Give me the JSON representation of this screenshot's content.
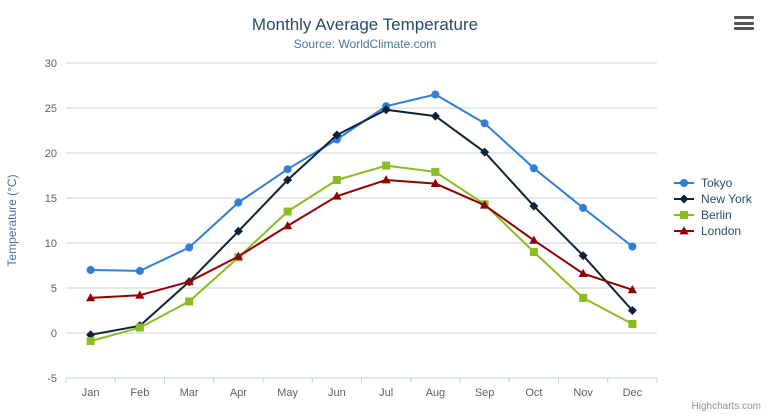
{
  "chart_data": {
    "type": "line",
    "title": "Monthly Average Temperature",
    "subtitle": "Source: WorldClimate.com",
    "categories": [
      "Jan",
      "Feb",
      "Mar",
      "Apr",
      "May",
      "Jun",
      "Jul",
      "Aug",
      "Sep",
      "Oct",
      "Nov",
      "Dec"
    ],
    "series": [
      {
        "name": "Tokyo",
        "color": "#2f7ed8",
        "marker": "circle",
        "values": [
          7.0,
          6.9,
          9.5,
          14.5,
          18.2,
          21.5,
          25.2,
          26.5,
          23.3,
          18.3,
          13.9,
          9.6
        ]
      },
      {
        "name": "New York",
        "color": "#0d233a",
        "marker": "diamond",
        "values": [
          -0.2,
          0.8,
          5.7,
          11.3,
          17.0,
          22.0,
          24.8,
          24.1,
          20.1,
          14.1,
          8.6,
          2.5
        ]
      },
      {
        "name": "Berlin",
        "color": "#8bbc21",
        "marker": "square",
        "values": [
          -0.9,
          0.6,
          3.5,
          8.4,
          13.5,
          17.0,
          18.6,
          17.9,
          14.3,
          9.0,
          3.9,
          1.0
        ]
      },
      {
        "name": "London",
        "color": "#910000",
        "marker": "triangle",
        "values": [
          3.9,
          4.2,
          5.7,
          8.5,
          11.9,
          15.2,
          17.0,
          16.6,
          14.2,
          10.3,
          6.6,
          4.8
        ]
      }
    ],
    "xlabel": "",
    "ylabel": "Temperature (°C)",
    "ylim": [
      -5,
      30
    ],
    "ytick_interval": 5,
    "yticks": [
      -5,
      0,
      5,
      10,
      15,
      20,
      25,
      30
    ],
    "grid": true,
    "legend_position": "right"
  },
  "credits": {
    "label": "Highcharts.com"
  },
  "icons": {
    "context_menu": "hamburger-icon"
  },
  "colors": {
    "title": "#274b6d",
    "subtitle": "#4d759e",
    "axis_title": "#4d759e",
    "tick_label": "#606060",
    "grid": "#d0d0d0",
    "axis_line": "#c0d0e0",
    "legend_text": "#274b6d",
    "credits": "#909090",
    "menu_icon": "#555555"
  }
}
